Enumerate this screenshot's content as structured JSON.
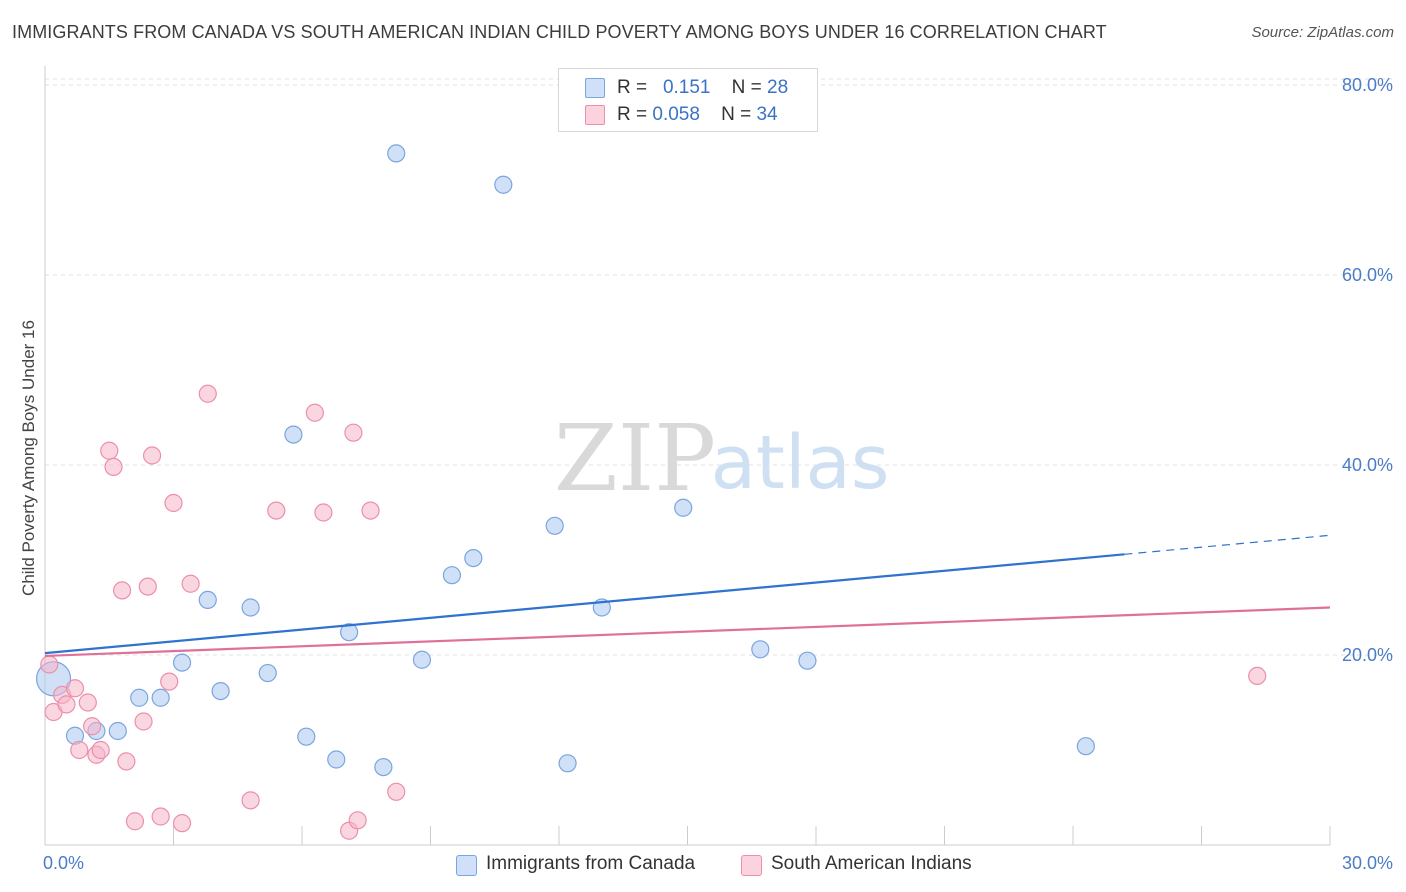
{
  "header": {
    "title": "IMMIGRANTS FROM CANADA VS SOUTH AMERICAN INDIAN CHILD POVERTY AMONG BOYS UNDER 16 CORRELATION CHART",
    "source": "Source: ZipAtlas.com"
  },
  "watermark": {
    "zip": "ZIP",
    "atlas": "atlas"
  },
  "legend": {
    "rows": [
      {
        "r_label": "R =",
        "r_value": "0.151",
        "n_label": "N =",
        "n_value": "28",
        "color": "#a9c8f0"
      },
      {
        "r_label": "R =",
        "r_value": "0.058",
        "n_label": "N =",
        "n_value": "34",
        "color": "#f6b5c8"
      }
    ]
  },
  "bottom_legend": {
    "items": [
      {
        "label": "Immigrants from Canada",
        "color": "#a9c8f0"
      },
      {
        "label": "South American Indians",
        "color": "#f6b5c8"
      }
    ]
  },
  "chart_data": {
    "type": "scatter",
    "title": "IMMIGRANTS FROM CANADA VS SOUTH AMERICAN INDIAN CHILD POVERTY AMONG BOYS UNDER 16 CORRELATION CHART",
    "xlabel": "",
    "ylabel": "Child Poverty Among Boys Under 16",
    "xlim": [
      0,
      30
    ],
    "ylim": [
      0,
      82
    ],
    "x_tick_labels": [
      "0.0%",
      "30.0%"
    ],
    "y_ticks": [
      20,
      40,
      60,
      80
    ],
    "y_tick_labels": [
      "20.0%",
      "40.0%",
      "60.0%",
      "80.0%"
    ],
    "grid": true,
    "legend_position": "top-center",
    "series": [
      {
        "name": "Immigrants from Canada",
        "color": "#a9c8f0",
        "stroke": "#7aa5de",
        "line_color": "#2f72d0",
        "trend": {
          "x0": 0,
          "y0": 20.2,
          "x1": 25.2,
          "y1": 30.6,
          "dash_to_x": 30,
          "dash_to_y": 32.6
        },
        "points": [
          {
            "x": 0.2,
            "y": 17.5,
            "big": true
          },
          {
            "x": 0.7,
            "y": 11.5
          },
          {
            "x": 1.2,
            "y": 12.0
          },
          {
            "x": 1.7,
            "y": 12.0
          },
          {
            "x": 2.2,
            "y": 15.5
          },
          {
            "x": 2.7,
            "y": 15.5
          },
          {
            "x": 3.2,
            "y": 19.2
          },
          {
            "x": 3.8,
            "y": 25.8
          },
          {
            "x": 4.1,
            "y": 16.2
          },
          {
            "x": 4.8,
            "y": 25.0
          },
          {
            "x": 5.2,
            "y": 18.1
          },
          {
            "x": 5.8,
            "y": 43.2
          },
          {
            "x": 6.1,
            "y": 11.4
          },
          {
            "x": 6.8,
            "y": 9.0
          },
          {
            "x": 7.1,
            "y": 22.4
          },
          {
            "x": 7.9,
            "y": 8.2
          },
          {
            "x": 8.2,
            "y": 72.8
          },
          {
            "x": 8.8,
            "y": 19.5
          },
          {
            "x": 9.5,
            "y": 28.4
          },
          {
            "x": 10.0,
            "y": 30.2
          },
          {
            "x": 10.7,
            "y": 69.5
          },
          {
            "x": 11.9,
            "y": 33.6
          },
          {
            "x": 12.2,
            "y": 8.6
          },
          {
            "x": 13.0,
            "y": 25.0
          },
          {
            "x": 14.9,
            "y": 35.5
          },
          {
            "x": 16.7,
            "y": 20.6
          },
          {
            "x": 17.8,
            "y": 19.4
          },
          {
            "x": 24.3,
            "y": 10.4
          }
        ]
      },
      {
        "name": "South American Indians",
        "color": "#f6b5c8",
        "stroke": "#eb8fab",
        "line_color": "#e0709a",
        "trend": {
          "x0": 0,
          "y0": 19.9,
          "x1": 30,
          "y1": 25.0
        },
        "points": [
          {
            "x": 0.1,
            "y": 19.0
          },
          {
            "x": 0.2,
            "y": 14.0
          },
          {
            "x": 0.4,
            "y": 15.8
          },
          {
            "x": 0.5,
            "y": 14.8
          },
          {
            "x": 0.7,
            "y": 16.5
          },
          {
            "x": 0.8,
            "y": 10.0
          },
          {
            "x": 1.0,
            "y": 15.0
          },
          {
            "x": 1.1,
            "y": 12.5
          },
          {
            "x": 1.2,
            "y": 9.5
          },
          {
            "x": 1.3,
            "y": 10.0
          },
          {
            "x": 1.5,
            "y": 41.5
          },
          {
            "x": 1.6,
            "y": 39.8
          },
          {
            "x": 1.8,
            "y": 26.8
          },
          {
            "x": 1.9,
            "y": 8.8
          },
          {
            "x": 2.1,
            "y": 2.5
          },
          {
            "x": 2.3,
            "y": 13.0
          },
          {
            "x": 2.4,
            "y": 27.2
          },
          {
            "x": 2.5,
            "y": 41.0
          },
          {
            "x": 2.7,
            "y": 3.0
          },
          {
            "x": 2.9,
            "y": 17.2
          },
          {
            "x": 3.0,
            "y": 36.0
          },
          {
            "x": 3.2,
            "y": 2.3
          },
          {
            "x": 3.4,
            "y": 27.5
          },
          {
            "x": 3.8,
            "y": 47.5
          },
          {
            "x": 4.8,
            "y": 4.7
          },
          {
            "x": 5.4,
            "y": 35.2
          },
          {
            "x": 6.3,
            "y": 45.5
          },
          {
            "x": 6.5,
            "y": 35.0
          },
          {
            "x": 7.1,
            "y": 1.5
          },
          {
            "x": 7.3,
            "y": 2.6
          },
          {
            "x": 7.2,
            "y": 43.4
          },
          {
            "x": 7.6,
            "y": 35.2
          },
          {
            "x": 8.2,
            "y": 5.6
          },
          {
            "x": 28.3,
            "y": 17.8
          }
        ]
      }
    ]
  }
}
